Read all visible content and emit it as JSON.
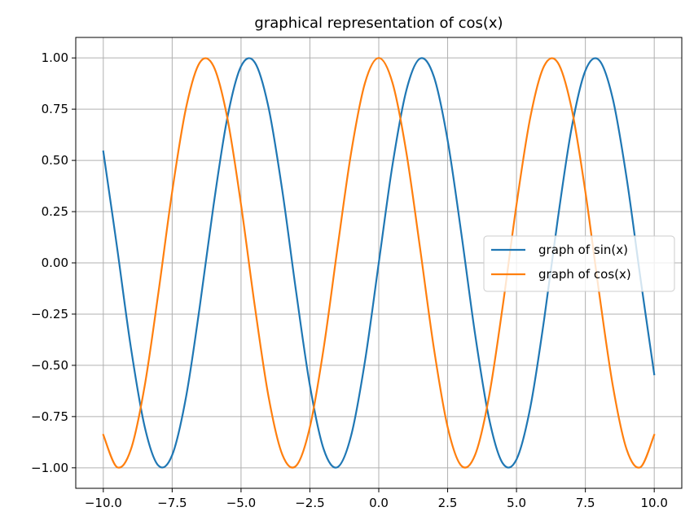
{
  "chart_data": {
    "type": "line",
    "title": "graphical representation of cos(x)",
    "xlabel": "",
    "ylabel": "",
    "xlim": [
      -11,
      11
    ],
    "ylim": [
      -1.1,
      1.1
    ],
    "grid": true,
    "legend_position": "center-right",
    "x_ticks": [
      -10.0,
      -7.5,
      -5.0,
      -2.5,
      0.0,
      2.5,
      5.0,
      7.5,
      10.0
    ],
    "x_tick_labels": [
      "−10.0",
      "−7.5",
      "−5.0",
      "−2.5",
      "0.0",
      "2.5",
      "5.0",
      "7.5",
      "10.0"
    ],
    "y_ticks": [
      -1.0,
      -0.75,
      -0.5,
      -0.25,
      0.0,
      0.25,
      0.5,
      0.75,
      1.0
    ],
    "y_tick_labels": [
      "−1.00",
      "−0.75",
      "−0.50",
      "−0.25",
      "0.00",
      "0.25",
      "0.50",
      "0.75",
      "1.00"
    ],
    "series": [
      {
        "name": "graph of sin(x)",
        "color": "#1f77b4",
        "x": [
          -10.0,
          -9.5,
          -9.0,
          -8.5,
          -8.0,
          -7.5,
          -7.0,
          -6.5,
          -6.0,
          -5.5,
          -5.0,
          -4.5,
          -4.0,
          -3.5,
          -3.0,
          -2.5,
          -2.0,
          -1.5,
          -1.0,
          -0.5,
          0.0,
          0.5,
          1.0,
          1.5,
          2.0,
          2.5,
          3.0,
          3.5,
          4.0,
          4.5,
          5.0,
          5.5,
          6.0,
          6.5,
          7.0,
          7.5,
          8.0,
          8.5,
          9.0,
          9.5,
          10.0
        ],
        "y": [
          0.544,
          0.075,
          -0.412,
          -0.798,
          -0.989,
          -0.938,
          -0.657,
          -0.215,
          0.279,
          0.706,
          0.959,
          0.978,
          0.757,
          0.351,
          -0.141,
          -0.598,
          -0.909,
          -0.997,
          -0.841,
          -0.479,
          0.0,
          0.479,
          0.841,
          0.997,
          0.909,
          0.598,
          0.141,
          -0.351,
          -0.757,
          -0.978,
          -0.959,
          -0.706,
          -0.279,
          0.215,
          0.657,
          0.938,
          0.989,
          0.798,
          0.412,
          -0.075,
          -0.544
        ]
      },
      {
        "name": "graph of cos(x)",
        "color": "#ff7f0e",
        "x": [
          -10.0,
          -9.5,
          -9.0,
          -8.5,
          -8.0,
          -7.5,
          -7.0,
          -6.5,
          -6.0,
          -5.5,
          -5.0,
          -4.5,
          -4.0,
          -3.5,
          -3.0,
          -2.5,
          -2.0,
          -1.5,
          -1.0,
          -0.5,
          0.0,
          0.5,
          1.0,
          1.5,
          2.0,
          2.5,
          3.0,
          3.5,
          4.0,
          4.5,
          5.0,
          5.5,
          6.0,
          6.5,
          7.0,
          7.5,
          8.0,
          8.5,
          9.0,
          9.5,
          10.0
        ],
        "y": [
          -0.839,
          -0.997,
          -0.911,
          -0.602,
          -0.146,
          0.347,
          0.754,
          0.977,
          0.96,
          0.709,
          0.284,
          -0.211,
          -0.654,
          -0.936,
          -0.99,
          -0.801,
          -0.416,
          0.071,
          0.54,
          0.878,
          1.0,
          0.878,
          0.54,
          0.071,
          -0.416,
          -0.801,
          -0.99,
          -0.936,
          -0.654,
          -0.211,
          0.284,
          0.709,
          0.96,
          0.977,
          0.754,
          0.347,
          -0.146,
          -0.602,
          -0.911,
          -0.997,
          -0.839
        ]
      }
    ]
  }
}
